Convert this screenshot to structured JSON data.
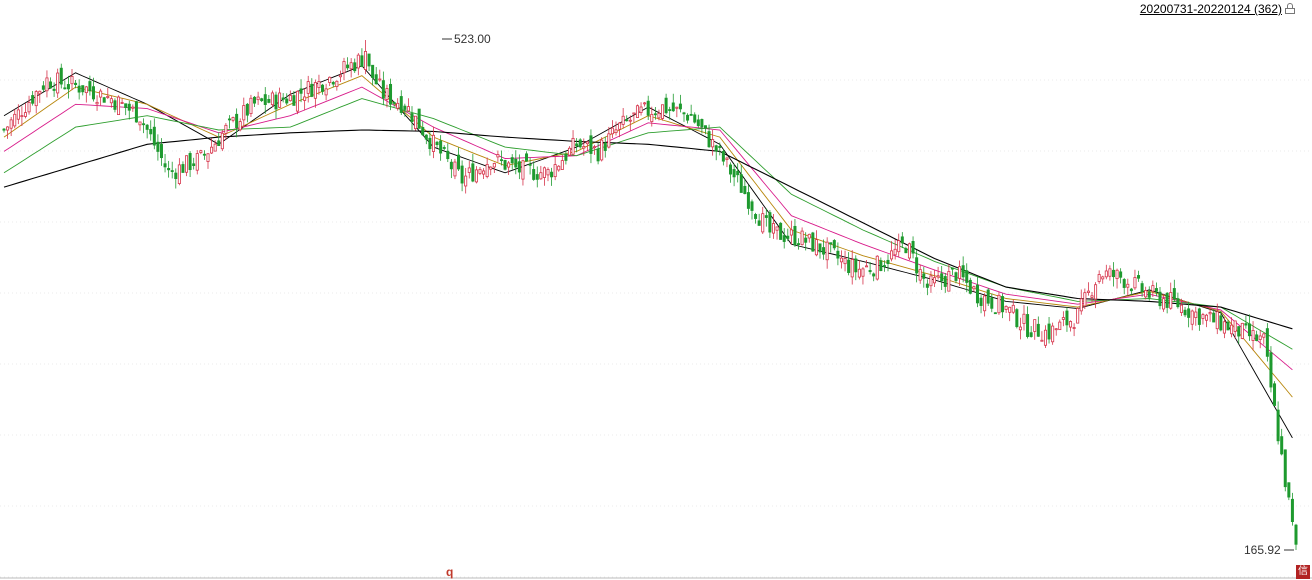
{
  "header": {
    "range_label": "20200731-20220124 (362)",
    "lock_icon": "lock-icon"
  },
  "annotations": {
    "high_label": "523.00",
    "low_label": "165.92",
    "cursor_marker": "q",
    "corner_icon_glyph": "信"
  },
  "colors": {
    "up": "#d6334a",
    "down": "#1e9a2f",
    "ma_fast": "#000000",
    "ma_brown": "#b8860b",
    "ma_magenta": "#d81b8a",
    "ma_green": "#2e9e2e",
    "ma_long": "#000000",
    "grid": "#d8d8d8"
  },
  "chart_data": {
    "type": "candlestick",
    "period": "20200731-20220124",
    "bar_count": 362,
    "ylim": [
      165.92,
      523.0
    ],
    "y_high": 523.0,
    "y_low": 165.92,
    "close_trace": [
      [
        0,
        460
      ],
      [
        12,
        495
      ],
      [
        22,
        490
      ],
      [
        30,
        482
      ],
      [
        38,
        470
      ],
      [
        46,
        430
      ],
      [
        55,
        440
      ],
      [
        62,
        460
      ],
      [
        70,
        478
      ],
      [
        80,
        483
      ],
      [
        90,
        495
      ],
      [
        100,
        510
      ],
      [
        106,
        485
      ],
      [
        112,
        478
      ],
      [
        120,
        450
      ],
      [
        128,
        425
      ],
      [
        136,
        440
      ],
      [
        144,
        432
      ],
      [
        152,
        430
      ],
      [
        160,
        450
      ],
      [
        166,
        445
      ],
      [
        172,
        462
      ],
      [
        178,
        472
      ],
      [
        184,
        476
      ],
      [
        192,
        470
      ],
      [
        198,
        450
      ],
      [
        206,
        420
      ],
      [
        214,
        388
      ],
      [
        222,
        385
      ],
      [
        230,
        375
      ],
      [
        238,
        362
      ],
      [
        244,
        365
      ],
      [
        252,
        380
      ],
      [
        258,
        350
      ],
      [
        266,
        360
      ],
      [
        272,
        345
      ],
      [
        280,
        335
      ],
      [
        286,
        322
      ],
      [
        292,
        318
      ],
      [
        300,
        330
      ],
      [
        306,
        360
      ],
      [
        312,
        357
      ],
      [
        320,
        345
      ],
      [
        328,
        338
      ],
      [
        334,
        330
      ],
      [
        340,
        325
      ],
      [
        346,
        318
      ],
      [
        352,
        312
      ],
      [
        361,
        166
      ]
    ],
    "moving_averages": [
      {
        "name": "",
        "color_key": "ma_fast",
        "values": [
          [
            0,
            470
          ],
          [
            20,
            500
          ],
          [
            40,
            478
          ],
          [
            60,
            450
          ],
          [
            80,
            485
          ],
          [
            100,
            505
          ],
          [
            120,
            448
          ],
          [
            140,
            430
          ],
          [
            160,
            448
          ],
          [
            180,
            476
          ],
          [
            200,
            450
          ],
          [
            220,
            380
          ],
          [
            240,
            368
          ],
          [
            260,
            355
          ],
          [
            280,
            340
          ],
          [
            300,
            335
          ],
          [
            320,
            348
          ],
          [
            340,
            332
          ],
          [
            361,
            240
          ]
        ]
      },
      {
        "name": "",
        "color_key": "ma_brown",
        "values": [
          [
            0,
            455
          ],
          [
            20,
            490
          ],
          [
            40,
            478
          ],
          [
            60,
            455
          ],
          [
            80,
            478
          ],
          [
            100,
            498
          ],
          [
            120,
            455
          ],
          [
            140,
            435
          ],
          [
            160,
            445
          ],
          [
            180,
            470
          ],
          [
            200,
            455
          ],
          [
            220,
            390
          ],
          [
            240,
            372
          ],
          [
            260,
            358
          ],
          [
            280,
            342
          ],
          [
            300,
            336
          ],
          [
            320,
            347
          ],
          [
            340,
            333
          ],
          [
            361,
            270
          ]
        ]
      },
      {
        "name": "",
        "color_key": "ma_magenta",
        "values": [
          [
            0,
            445
          ],
          [
            20,
            478
          ],
          [
            40,
            475
          ],
          [
            60,
            458
          ],
          [
            80,
            470
          ],
          [
            100,
            490
          ],
          [
            120,
            462
          ],
          [
            140,
            440
          ],
          [
            160,
            442
          ],
          [
            180,
            465
          ],
          [
            200,
            460
          ],
          [
            220,
            400
          ],
          [
            240,
            380
          ],
          [
            260,
            362
          ],
          [
            280,
            345
          ],
          [
            300,
            338
          ],
          [
            320,
            345
          ],
          [
            340,
            334
          ],
          [
            361,
            290
          ]
        ]
      },
      {
        "name": "",
        "color_key": "ma_green",
        "values": [
          [
            0,
            430
          ],
          [
            20,
            462
          ],
          [
            40,
            470
          ],
          [
            60,
            460
          ],
          [
            80,
            462
          ],
          [
            100,
            482
          ],
          [
            120,
            468
          ],
          [
            140,
            448
          ],
          [
            160,
            442
          ],
          [
            180,
            458
          ],
          [
            200,
            462
          ],
          [
            220,
            415
          ],
          [
            240,
            390
          ],
          [
            260,
            368
          ],
          [
            280,
            350
          ],
          [
            300,
            340
          ],
          [
            320,
            342
          ],
          [
            340,
            336
          ],
          [
            361,
            305
          ]
        ]
      },
      {
        "name": "",
        "color_key": "ma_long",
        "values": [
          [
            0,
            420
          ],
          [
            40,
            450
          ],
          [
            60,
            455
          ],
          [
            80,
            458
          ],
          [
            100,
            460
          ],
          [
            120,
            459
          ],
          [
            140,
            455
          ],
          [
            160,
            452
          ],
          [
            180,
            450
          ],
          [
            200,
            445
          ],
          [
            220,
            420
          ],
          [
            240,
            395
          ],
          [
            260,
            370
          ],
          [
            280,
            350
          ],
          [
            300,
            342
          ],
          [
            320,
            340
          ],
          [
            340,
            336
          ],
          [
            361,
            320
          ]
        ]
      }
    ]
  }
}
